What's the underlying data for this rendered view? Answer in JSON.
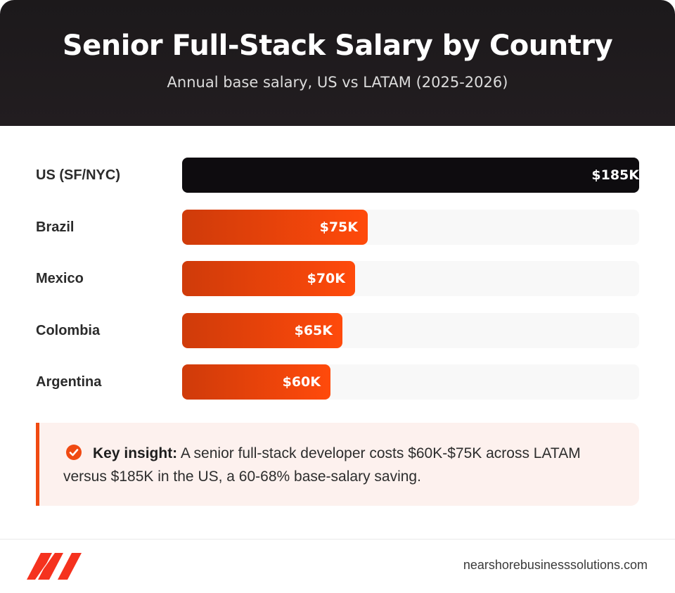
{
  "header": {
    "title": "Senior Full-Stack Salary by Country",
    "subtitle": "Annual base salary, US vs LATAM (2025-2026)"
  },
  "chart_data": {
    "type": "bar",
    "orientation": "horizontal",
    "title": "Senior Full-Stack Salary by Country",
    "subtitle": "Annual base salary, US vs LATAM (2025-2026)",
    "categories": [
      "US (SF/NYC)",
      "Brazil",
      "Mexico",
      "Colombia",
      "Argentina"
    ],
    "values": [
      185,
      75,
      70,
      65,
      60
    ],
    "value_labels": [
      "$185K",
      "$75K",
      "$70K",
      "$65K",
      "$60K"
    ],
    "unit": "USD thousands",
    "xlim": [
      0,
      185
    ],
    "bar_colors": [
      "#0e0c0f",
      "#e8420c",
      "#e8420c",
      "#e8420c",
      "#e8420c"
    ],
    "grid": false,
    "legend": "none"
  },
  "insight": {
    "label": "Key insight:",
    "text": "A senior full-stack developer costs $60K-$75K across LATAM versus $185K in the US, a 60-68% base-salary saving.",
    "icon": "check-circle-icon",
    "accent_color": "#f04a12"
  },
  "footer": {
    "logo_icon": "nearshore-logo-icon",
    "domain": "nearshorebusinesssolutions.com"
  }
}
